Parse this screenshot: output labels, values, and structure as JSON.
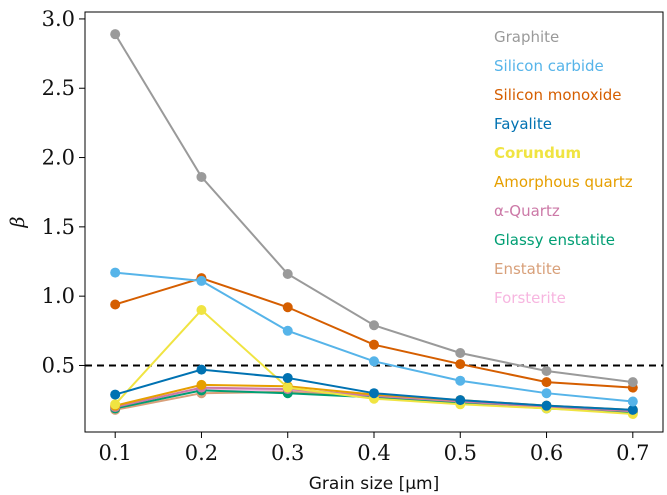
{
  "chart_data": {
    "type": "line",
    "xlabel": "Grain size [μm]",
    "ylabel": "β",
    "xlim": [
      0.065,
      0.735
    ],
    "ylim": [
      0.02,
      3.05
    ],
    "xticks": [
      "0.1",
      "0.2",
      "0.3",
      "0.4",
      "0.5",
      "0.6",
      "0.7"
    ],
    "yticks": [
      "0.5",
      "1.0",
      "1.5",
      "2.0",
      "2.5",
      "3.0"
    ],
    "x": [
      0.1,
      0.2,
      0.3,
      0.4,
      0.5,
      0.6,
      0.7
    ],
    "reference_line": {
      "y": 0.5,
      "style": "dashed",
      "color": "#000000"
    },
    "legend_position": "upper-right",
    "grid": false,
    "series": [
      {
        "name": "Graphite",
        "color": "#9a9a9a",
        "values": [
          2.89,
          1.86,
          1.16,
          0.79,
          0.59,
          0.46,
          0.38
        ]
      },
      {
        "name": "Silicon carbide",
        "color": "#56b4e9",
        "values": [
          1.17,
          1.11,
          0.75,
          0.53,
          0.39,
          0.3,
          0.24
        ]
      },
      {
        "name": "Silicon monoxide",
        "color": "#d55e00",
        "values": [
          0.94,
          1.13,
          0.92,
          0.65,
          0.51,
          0.38,
          0.34
        ]
      },
      {
        "name": "Fayalite",
        "color": "#0072b2",
        "values": [
          0.29,
          0.47,
          0.41,
          0.3,
          0.25,
          0.21,
          0.18
        ]
      },
      {
        "name": "Corundum",
        "color": "#f0e442",
        "bold": true,
        "values": [
          0.22,
          0.9,
          0.34,
          0.26,
          0.22,
          0.19,
          0.15
        ]
      },
      {
        "name": "Amorphous quartz",
        "color": "#e69f00",
        "values": [
          0.21,
          0.36,
          0.35,
          0.29,
          0.25,
          0.21,
          0.18
        ]
      },
      {
        "name": "α-Quartz",
        "color": "#cc79a7",
        "values": [
          0.2,
          0.34,
          0.33,
          0.28,
          0.24,
          0.2,
          0.17
        ]
      },
      {
        "name": "Glassy enstatite",
        "color": "#009e73",
        "values": [
          0.19,
          0.32,
          0.3,
          0.27,
          0.23,
          0.19,
          0.16
        ]
      },
      {
        "name": "Enstatite",
        "color": "#d8a07a",
        "values": [
          0.18,
          0.3,
          0.31,
          0.28,
          0.24,
          0.2,
          0.17
        ]
      },
      {
        "name": "Forsterite",
        "color": "#f7b6e0",
        "values": [
          0.2,
          0.33,
          0.32,
          0.28,
          0.24,
          0.2,
          0.17
        ]
      }
    ]
  }
}
